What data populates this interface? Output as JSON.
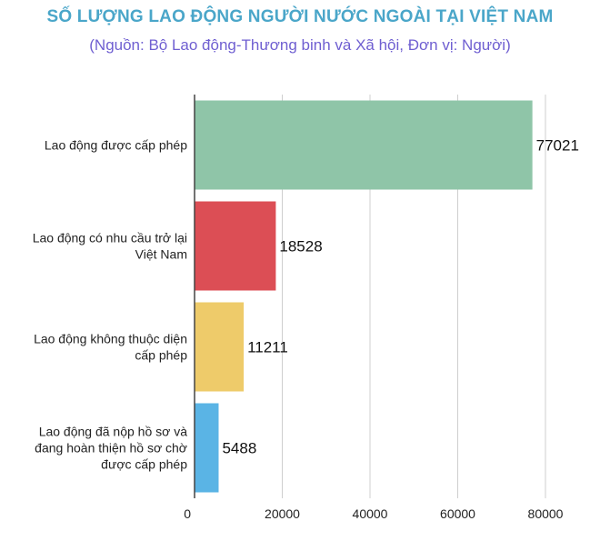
{
  "chart_data": {
    "type": "bar",
    "orientation": "horizontal",
    "title": "SỐ LƯỢNG LAO ĐỘNG NGƯỜI NƯỚC NGOÀI TẠI VIỆT NAM",
    "subtitle": "(Nguồn: Bộ Lao động-Thương binh và Xã hội, Đơn vị: Người)",
    "categories": [
      [
        "Lao động được cấp phép"
      ],
      [
        "Lao động có nhu cầu trở lại",
        "Việt Nam"
      ],
      [
        "Lao động không thuộc diện",
        "cấp phép"
      ],
      [
        "Lao động đã nộp hồ sơ và",
        "đang hoàn thiện hồ sơ chờ",
        "được cấp phép"
      ]
    ],
    "values": [
      77021,
      18528,
      11211,
      5488
    ],
    "value_labels": [
      "77021",
      "18528",
      "11211",
      "5488"
    ],
    "colors": [
      "#8fc5a8",
      "#dc4e55",
      "#eecb6a",
      "#5ab4e5"
    ],
    "xlim": [
      0,
      80000
    ],
    "ticks": [
      0,
      20000,
      40000,
      60000,
      80000
    ],
    "tick_labels": [
      "0",
      "20000",
      "40000",
      "60000",
      "80000"
    ],
    "grid": "vertical",
    "legend": "none"
  }
}
